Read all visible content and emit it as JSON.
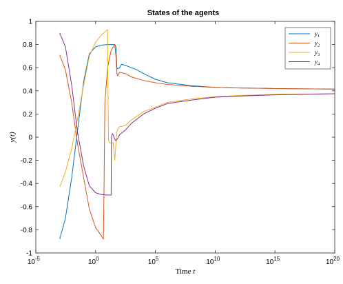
{
  "chart_data": {
    "type": "line",
    "title": "States of the agents",
    "xlabel": "Time t",
    "ylabel": "y(t)",
    "xscale": "log",
    "xlim": [
      1e-05,
      1e+20
    ],
    "ylim": [
      -1,
      1
    ],
    "x_ticks": [
      {
        "value": 1e-05,
        "base": "10",
        "exp": "-5"
      },
      {
        "value": 1,
        "base": "10",
        "exp": "0"
      },
      {
        "value": 100000,
        "base": "10",
        "exp": "5"
      },
      {
        "value": 10000000000.0,
        "base": "10",
        "exp": "10"
      },
      {
        "value": 1000000000000000.0,
        "base": "10",
        "exp": "15"
      },
      {
        "value": 1e+20,
        "base": "10",
        "exp": "20"
      }
    ],
    "y_ticks": [
      {
        "value": -1,
        "label": "-1"
      },
      {
        "value": -0.8,
        "label": "-0.8"
      },
      {
        "value": -0.6,
        "label": "-0.6"
      },
      {
        "value": -0.4,
        "label": "-0.4"
      },
      {
        "value": -0.2,
        "label": "-0.2"
      },
      {
        "value": 0,
        "label": "0"
      },
      {
        "value": 0.2,
        "label": "0.2"
      },
      {
        "value": 0.4,
        "label": "0.4"
      },
      {
        "value": 0.6,
        "label": "0.6"
      },
      {
        "value": 0.8,
        "label": "0.8"
      },
      {
        "value": 1,
        "label": "1"
      }
    ],
    "grid": false,
    "legend_position": "top-right",
    "series": [
      {
        "name": "y1",
        "label_base": "y",
        "label_sub": "1",
        "color": "#0072BD",
        "x": [
          0.001,
          0.003,
          0.01,
          0.03,
          0.1,
          0.3,
          1,
          3,
          10,
          30,
          40,
          50,
          60,
          70,
          100,
          150,
          300,
          1000,
          3000,
          10000,
          100000,
          1000000,
          100000000.0,
          10000000000.0,
          1000000000000.0,
          1000000000000000.0,
          1e+20
        ],
        "y": [
          -0.88,
          -0.7,
          -0.35,
          0.05,
          0.48,
          0.72,
          0.78,
          0.795,
          0.8,
          0.8,
          0.8,
          0.78,
          0.6,
          0.59,
          0.6,
          0.63,
          0.62,
          0.6,
          0.58,
          0.55,
          0.5,
          0.47,
          0.445,
          0.43,
          0.425,
          0.42,
          0.415
        ]
      },
      {
        "name": "y2",
        "label_base": "y",
        "label_sub": "2",
        "color": "#D95319",
        "x": [
          0.001,
          0.003,
          0.01,
          0.03,
          0.1,
          0.3,
          1,
          3,
          4.5,
          5,
          6,
          10,
          20,
          30,
          40,
          50,
          60,
          70,
          100,
          300,
          1000,
          10000,
          100000,
          1000000,
          100000000.0,
          10000000000.0,
          1000000000000.0,
          1000000000000000.0,
          1e+20
        ],
        "y": [
          0.71,
          0.58,
          0.3,
          -0.05,
          -0.35,
          -0.62,
          -0.78,
          -0.85,
          -0.88,
          -0.5,
          0.3,
          0.6,
          0.75,
          0.78,
          0.8,
          0.7,
          0.55,
          0.53,
          0.56,
          0.55,
          0.52,
          0.49,
          0.47,
          0.455,
          0.44,
          0.43,
          0.425,
          0.42,
          0.415
        ]
      },
      {
        "name": "y3",
        "label_base": "y",
        "label_sub": "3",
        "color": "#EDB120",
        "x": [
          0.001,
          0.003,
          0.01,
          0.03,
          0.1,
          0.3,
          1,
          3,
          10,
          10.5,
          12,
          15,
          20,
          30,
          40,
          60,
          80,
          100,
          300,
          1000,
          10000,
          100000,
          1000000,
          100000000.0,
          10000000000.0,
          1000000000000.0,
          1000000000000000.0,
          1e+20
        ],
        "y": [
          -0.43,
          -0.3,
          -0.1,
          0.15,
          0.45,
          0.7,
          0.82,
          0.88,
          0.93,
          0.6,
          -0.02,
          -0.05,
          -0.05,
          -0.05,
          -0.2,
          0.05,
          0.08,
          0.09,
          0.1,
          0.15,
          0.22,
          0.26,
          0.3,
          0.33,
          0.35,
          0.36,
          0.37,
          0.375
        ]
      },
      {
        "name": "y4",
        "label_base": "y",
        "label_sub": "4",
        "color": "#7E2F8E",
        "x": [
          0.001,
          0.003,
          0.01,
          0.03,
          0.1,
          0.3,
          1,
          3,
          10,
          20,
          21,
          25,
          30,
          40,
          50,
          60,
          70,
          100,
          300,
          1000,
          10000,
          100000,
          1000000,
          100000000.0,
          10000000000.0,
          1000000000000.0,
          1000000000000000.0,
          1e+20
        ],
        "y": [
          0.9,
          0.78,
          0.45,
          0.05,
          -0.25,
          -0.42,
          -0.48,
          -0.495,
          -0.5,
          -0.5,
          0.0,
          0.03,
          0.02,
          -0.02,
          -0.03,
          -0.02,
          -0.01,
          0.02,
          0.06,
          0.12,
          0.2,
          0.25,
          0.29,
          0.32,
          0.345,
          0.355,
          0.365,
          0.375
        ]
      }
    ]
  }
}
